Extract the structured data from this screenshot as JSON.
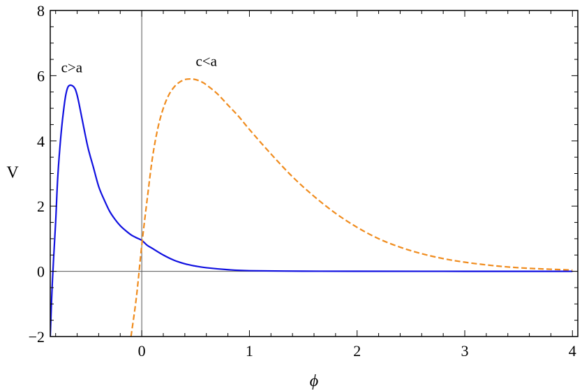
{
  "chart_data": {
    "type": "line",
    "xlabel": "ϕ",
    "ylabel": "V",
    "xlim": [
      -0.85,
      4.05
    ],
    "ylim": [
      -2,
      8
    ],
    "xticks": [
      0,
      1,
      2,
      3,
      4
    ],
    "yticks": [
      -2,
      0,
      2,
      4,
      6,
      8
    ],
    "xtick_labels": [
      "0",
      "1",
      "2",
      "3",
      "4"
    ],
    "ytick_labels": [
      "−2",
      "0",
      "2",
      "4",
      "6",
      "8"
    ],
    "grid": false,
    "legend": "none",
    "series": [
      {
        "color": "#1010e0",
        "style": "solid",
        "x": [
          -0.85,
          -0.83,
          -0.8,
          -0.78,
          -0.75,
          -0.72,
          -0.7,
          -0.68,
          -0.65,
          -0.62,
          -0.6,
          -0.58,
          -0.55,
          -0.5,
          -0.45,
          -0.4,
          -0.35,
          -0.3,
          -0.25,
          -0.2,
          -0.15,
          -0.1,
          -0.05,
          0.0,
          0.05,
          0.1,
          0.2,
          0.3,
          0.4,
          0.5,
          0.6,
          0.8,
          1.0,
          1.5,
          2.0,
          3.0,
          4.0
        ],
        "y": [
          -2.0,
          -0.3,
          1.5,
          2.9,
          4.2,
          5.1,
          5.5,
          5.68,
          5.7,
          5.6,
          5.4,
          5.1,
          4.6,
          3.8,
          3.2,
          2.6,
          2.2,
          1.85,
          1.6,
          1.4,
          1.25,
          1.12,
          1.03,
          0.95,
          0.8,
          0.7,
          0.5,
          0.34,
          0.23,
          0.16,
          0.11,
          0.05,
          0.02,
          0.005,
          0.002,
          0.0,
          0.0
        ]
      },
      {
        "color": "#f08c1e",
        "style": "dashed",
        "x": [
          -0.1,
          -0.05,
          0.0,
          0.05,
          0.1,
          0.15,
          0.2,
          0.25,
          0.3,
          0.35,
          0.4,
          0.45,
          0.5,
          0.55,
          0.6,
          0.7,
          0.8,
          0.9,
          1.0,
          1.2,
          1.4,
          1.6,
          1.8,
          2.0,
          2.2,
          2.4,
          2.6,
          2.8,
          3.0,
          3.25,
          3.5,
          3.75,
          4.0
        ],
        "y": [
          -2.0,
          -0.8,
          0.8,
          2.2,
          3.5,
          4.4,
          5.0,
          5.4,
          5.65,
          5.8,
          5.88,
          5.9,
          5.88,
          5.82,
          5.72,
          5.45,
          5.1,
          4.75,
          4.35,
          3.6,
          2.9,
          2.3,
          1.78,
          1.35,
          1.0,
          0.74,
          0.54,
          0.39,
          0.28,
          0.18,
          0.11,
          0.07,
          0.04
        ]
      }
    ],
    "annotations": [
      {
        "text": "c>a",
        "x": -0.65,
        "y": 6.1
      },
      {
        "text": "c<a",
        "x": 0.6,
        "y": 6.3
      }
    ]
  }
}
